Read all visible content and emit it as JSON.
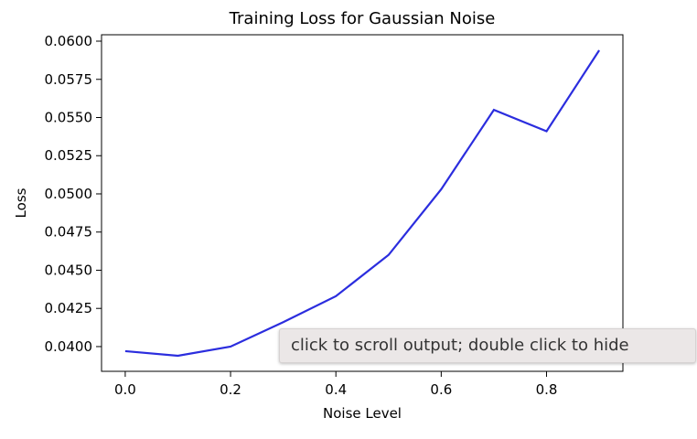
{
  "chart_data": {
    "type": "line",
    "title": "Training Loss for Gaussian Noise",
    "xlabel": "Noise Level",
    "ylabel": "Loss",
    "x": [
      0.0,
      0.1,
      0.2,
      0.3,
      0.4,
      0.5,
      0.6,
      0.7,
      0.8,
      0.9
    ],
    "series": [
      {
        "values": [
          0.0397,
          0.0394,
          0.04,
          0.0416,
          0.0433,
          0.046,
          0.0503,
          0.0555,
          0.0541,
          0.0594
        ],
        "color": "#2b2dde"
      }
    ],
    "xticks": [
      0.0,
      0.2,
      0.4,
      0.6,
      0.8
    ],
    "xtick_labels": [
      "0.0",
      "0.2",
      "0.4",
      "0.6",
      "0.8"
    ],
    "yticks": [
      0.04,
      0.0425,
      0.045,
      0.0475,
      0.05,
      0.0525,
      0.055,
      0.0575,
      0.06
    ],
    "ytick_labels": [
      "0.0400",
      "0.0425",
      "0.0450",
      "0.0475",
      "0.0500",
      "0.0525",
      "0.0550",
      "0.0575",
      "0.0600"
    ],
    "xlim": [
      -0.045,
      0.945
    ],
    "ylim": [
      0.03838,
      0.06042
    ],
    "grid": false,
    "legend": "none"
  },
  "tooltip": {
    "text": "click to scroll output; double click to hide"
  }
}
